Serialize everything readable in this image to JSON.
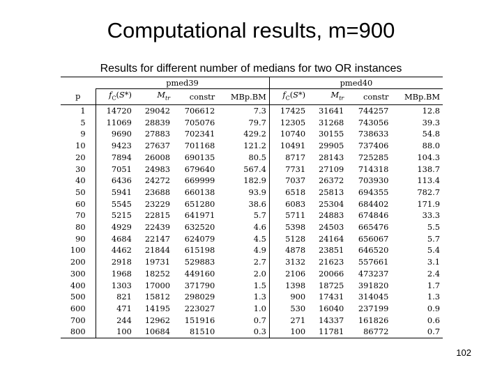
{
  "title": "Computational results, m=900",
  "subtitle": "Results for different number of medians for two OR instances",
  "table": {
    "instances": [
      "pmed39",
      "pmed40"
    ],
    "p_header": "p",
    "sub_headers": [
      "f_C(S*)",
      "M_tr",
      "constr",
      "MBp.BM"
    ],
    "rows": [
      [
        "1",
        "14720",
        "29042",
        "706612",
        "7.3",
        "17425",
        "31641",
        "744257",
        "12.8"
      ],
      [
        "5",
        "11069",
        "28839",
        "705076",
        "79.7",
        "12305",
        "31268",
        "743056",
        "39.3"
      ],
      [
        "9",
        "9690",
        "27883",
        "702341",
        "429.2",
        "10740",
        "30155",
        "738633",
        "54.8"
      ],
      [
        "10",
        "9423",
        "27637",
        "701168",
        "121.2",
        "10491",
        "29905",
        "737406",
        "88.0"
      ],
      [
        "20",
        "7894",
        "26008",
        "690135",
        "80.5",
        "8717",
        "28143",
        "725285",
        "104.3"
      ],
      [
        "30",
        "7051",
        "24983",
        "679640",
        "567.4",
        "7731",
        "27109",
        "714318",
        "138.7"
      ],
      [
        "40",
        "6436",
        "24272",
        "669999",
        "182.9",
        "7037",
        "26372",
        "703930",
        "113.4"
      ],
      [
        "50",
        "5941",
        "23688",
        "660138",
        "93.9",
        "6518",
        "25813",
        "694355",
        "782.7"
      ],
      [
        "60",
        "5545",
        "23229",
        "651280",
        "38.6",
        "6083",
        "25304",
        "684402",
        "171.9"
      ],
      [
        "70",
        "5215",
        "22815",
        "641971",
        "5.7",
        "5711",
        "24883",
        "674846",
        "33.3"
      ],
      [
        "80",
        "4929",
        "22439",
        "632520",
        "4.6",
        "5398",
        "24503",
        "665476",
        "5.5"
      ],
      [
        "90",
        "4684",
        "22147",
        "624079",
        "4.5",
        "5128",
        "24164",
        "656067",
        "5.7"
      ],
      [
        "100",
        "4462",
        "21844",
        "615198",
        "4.9",
        "4878",
        "23851",
        "646520",
        "5.4"
      ],
      [
        "200",
        "2918",
        "19731",
        "529883",
        "2.7",
        "3132",
        "21623",
        "557661",
        "3.1"
      ],
      [
        "300",
        "1968",
        "18252",
        "449160",
        "2.0",
        "2106",
        "20066",
        "473237",
        "2.4"
      ],
      [
        "400",
        "1303",
        "17000",
        "371790",
        "1.5",
        "1398",
        "18725",
        "391820",
        "1.7"
      ],
      [
        "500",
        "821",
        "15812",
        "298029",
        "1.3",
        "900",
        "17431",
        "314045",
        "1.3"
      ],
      [
        "600",
        "471",
        "14195",
        "223027",
        "1.0",
        "530",
        "16040",
        "237199",
        "0.9"
      ],
      [
        "700",
        "244",
        "12962",
        "151916",
        "0.7",
        "271",
        "14337",
        "161826",
        "0.6"
      ],
      [
        "800",
        "100",
        "10684",
        "81510",
        "0.3",
        "100",
        "11781",
        "86772",
        "0.7"
      ]
    ]
  },
  "page_number": "102"
}
